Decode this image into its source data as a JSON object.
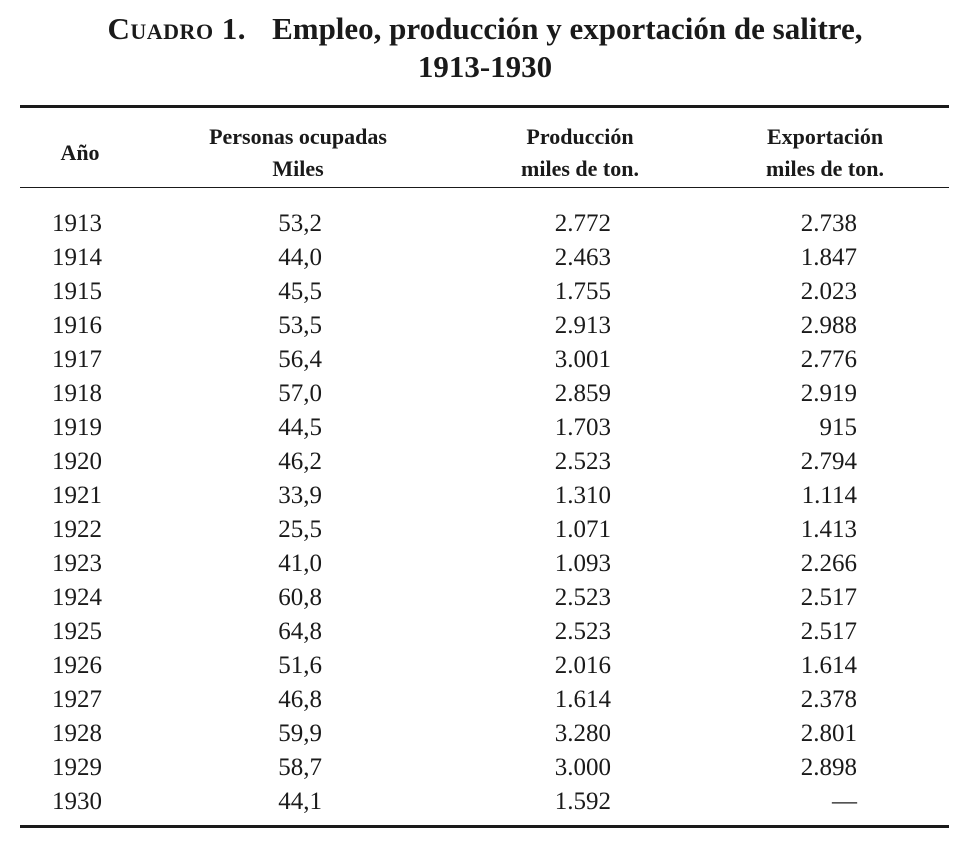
{
  "title": {
    "label": "Cuadro 1.",
    "line1": "Empleo, producción y exportación de salitre,",
    "line2": "1913-1930"
  },
  "headers": {
    "year": "Año",
    "employment": [
      "Personas ocupadas",
      "Miles"
    ],
    "production": [
      "Producción",
      "miles de ton."
    ],
    "export": [
      "Exportación",
      "miles de ton."
    ]
  },
  "rows": [
    {
      "year": "1913",
      "employment": "53,2",
      "production": "2.772",
      "export": "2.738"
    },
    {
      "year": "1914",
      "employment": "44,0",
      "production": "2.463",
      "export": "1.847"
    },
    {
      "year": "1915",
      "employment": "45,5",
      "production": "1.755",
      "export": "2.023"
    },
    {
      "year": "1916",
      "employment": "53,5",
      "production": "2.913",
      "export": "2.988"
    },
    {
      "year": "1917",
      "employment": "56,4",
      "production": "3.001",
      "export": "2.776"
    },
    {
      "year": "1918",
      "employment": "57,0",
      "production": "2.859",
      "export": "2.919"
    },
    {
      "year": "1919",
      "employment": "44,5",
      "production": "1.703",
      "export": "915"
    },
    {
      "year": "1920",
      "employment": "46,2",
      "production": "2.523",
      "export": "2.794"
    },
    {
      "year": "1921",
      "employment": "33,9",
      "production": "1.310",
      "export": "1.114"
    },
    {
      "year": "1922",
      "employment": "25,5",
      "production": "1.071",
      "export": "1.413"
    },
    {
      "year": "1923",
      "employment": "41,0",
      "production": "1.093",
      "export": "2.266"
    },
    {
      "year": "1924",
      "employment": "60,8",
      "production": "2.523",
      "export": "2.517"
    },
    {
      "year": "1925",
      "employment": "64,8",
      "production": "2.523",
      "export": "2.517"
    },
    {
      "year": "1926",
      "employment": "51,6",
      "production": "2.016",
      "export": "1.614"
    },
    {
      "year": "1927",
      "employment": "46,8",
      "production": "1.614",
      "export": "2.378"
    },
    {
      "year": "1928",
      "employment": "59,9",
      "production": "3.280",
      "export": "2.801"
    },
    {
      "year": "1929",
      "employment": "58,7",
      "production": "3.000",
      "export": "2.898"
    },
    {
      "year": "1930",
      "employment": "44,1",
      "production": "1.592",
      "export": "—"
    }
  ]
}
